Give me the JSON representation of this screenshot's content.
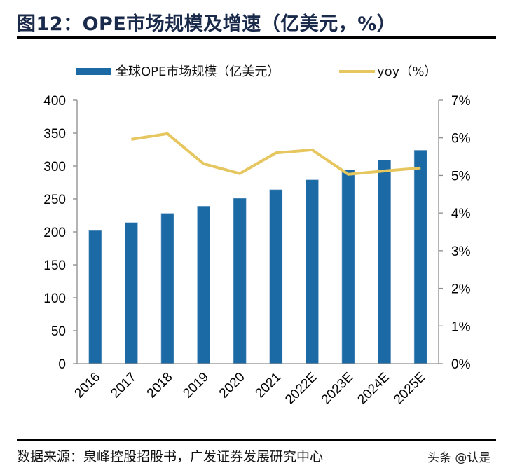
{
  "title": "图12：OPE市场规模及增速（亿美元，%）",
  "legend": {
    "bar_label": "全球OPE市场规模（亿美元）",
    "line_label": "yoy（%）"
  },
  "source": "数据来源：泉峰控股招股书，广发证券发展研究中心",
  "watermark": "头条 @认是",
  "colors": {
    "bar": "#1b6aa5",
    "line": "#e6c65e",
    "axis": "#8c8c8c"
  },
  "chart_data": {
    "type": "bar",
    "title": "OPE市场规模及增速（亿美元，%）",
    "categories": [
      "2016",
      "2017",
      "2018",
      "2019",
      "2020",
      "2021",
      "2022E",
      "2023E",
      "2024E",
      "2025E"
    ],
    "series": [
      {
        "name": "全球OPE市场规模（亿美元）",
        "type": "bar",
        "axis": "left",
        "values": [
          202,
          214,
          228,
          239,
          251,
          264,
          279,
          294,
          309,
          324
        ]
      },
      {
        "name": "yoy（%）",
        "type": "line",
        "axis": "right",
        "values": [
          null,
          5.96,
          6.11,
          5.31,
          5.05,
          5.6,
          5.68,
          5.03,
          5.12,
          5.2
        ]
      }
    ],
    "left_axis": {
      "ylim": [
        0,
        400
      ],
      "ticks": [
        0,
        50,
        100,
        150,
        200,
        250,
        300,
        350,
        400
      ],
      "tick_labels": [
        "0",
        "50",
        "100",
        "150",
        "200",
        "250",
        "300",
        "350",
        "400"
      ]
    },
    "right_axis": {
      "ylim": [
        0,
        7
      ],
      "ticks": [
        0,
        1,
        2,
        3,
        4,
        5,
        6,
        7
      ],
      "tick_labels": [
        "0%",
        "1%",
        "2%",
        "3%",
        "4%",
        "5%",
        "6%",
        "7%"
      ]
    },
    "xlabel": "",
    "ylabel": "",
    "grid": false,
    "legend_position": "top"
  }
}
